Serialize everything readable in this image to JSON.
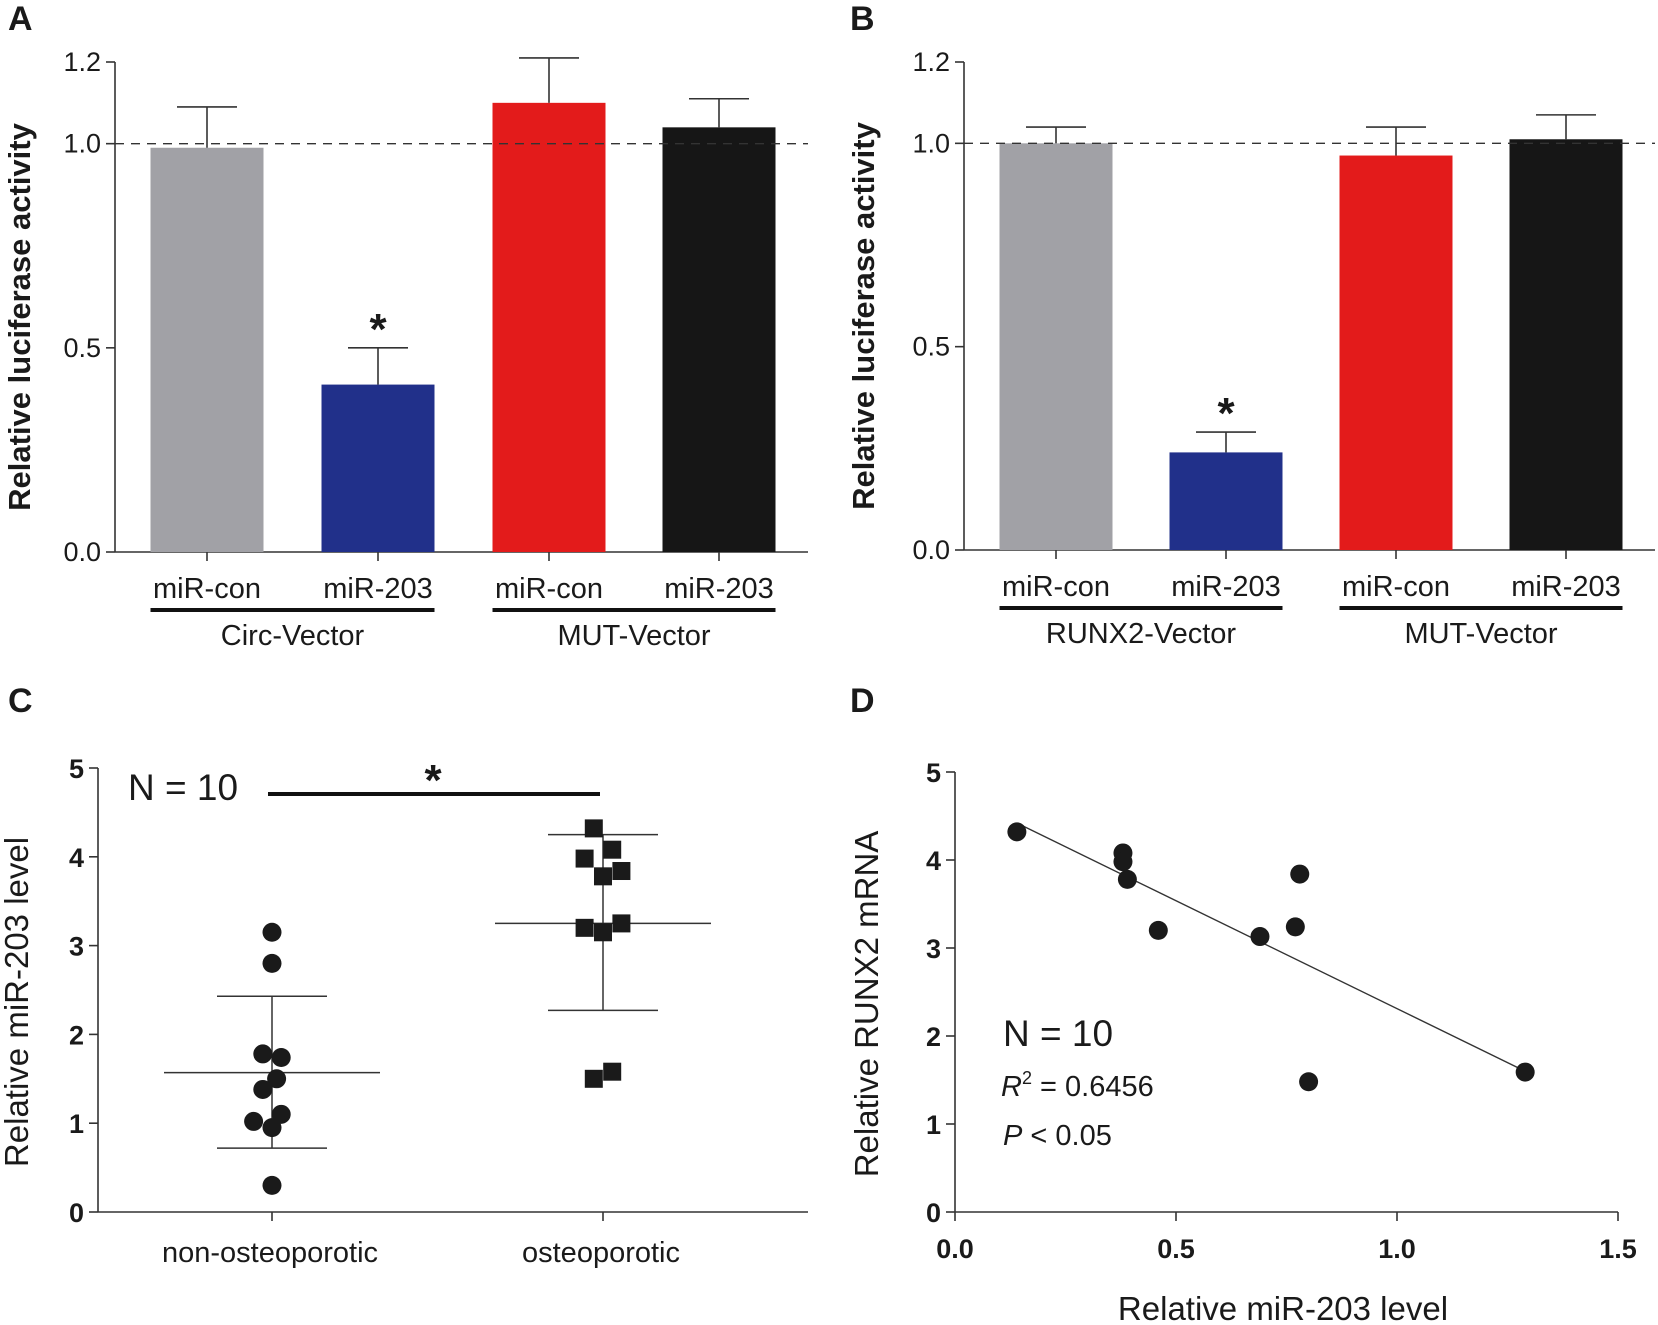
{
  "chart_data": [
    {
      "panel": "A",
      "type": "bar",
      "ylabel": "Relative luciferase activity",
      "ylim": [
        0,
        1.2
      ],
      "yticks": [
        "0.0",
        "0.5",
        "1.0",
        "1.2"
      ],
      "ytick_values": [
        0,
        0.5,
        1.0,
        1.2
      ],
      "reference_line": 1.0,
      "categories": [
        "miR-con",
        "miR-203",
        "miR-con",
        "miR-203"
      ],
      "groups": [
        {
          "label": "Circ-Vector",
          "members": [
            0,
            1
          ]
        },
        {
          "label": "MUT-Vector",
          "members": [
            2,
            3
          ]
        }
      ],
      "values": [
        0.99,
        0.41,
        1.1,
        1.04
      ],
      "errors": [
        0.1,
        0.09,
        0.11,
        0.07
      ],
      "colors": [
        "#a1a1a6",
        "#21308a",
        "#e31b1b",
        "#161616"
      ],
      "significance": [
        "",
        "*",
        "",
        ""
      ]
    },
    {
      "panel": "B",
      "type": "bar",
      "ylabel": "Relative luciferase activity",
      "ylim": [
        0,
        1.2
      ],
      "yticks": [
        "0.0",
        "0.5",
        "1.0",
        "1.2"
      ],
      "ytick_values": [
        0,
        0.5,
        1.0,
        1.2
      ],
      "reference_line": 1.0,
      "categories": [
        "miR-con",
        "miR-203",
        "miR-con",
        "miR-203"
      ],
      "groups": [
        {
          "label": "RUNX2-Vector",
          "members": [
            0,
            1
          ]
        },
        {
          "label": "MUT-Vector",
          "members": [
            2,
            3
          ]
        }
      ],
      "values": [
        1.0,
        0.24,
        0.97,
        1.01
      ],
      "errors": [
        0.04,
        0.05,
        0.07,
        0.06
      ],
      "colors": [
        "#a1a1a6",
        "#21308a",
        "#e31b1b",
        "#161616"
      ],
      "significance": [
        "",
        "*",
        "",
        ""
      ]
    },
    {
      "panel": "C",
      "type": "scatter",
      "ylabel": "Relative miR-203 level",
      "ylim": [
        0,
        5
      ],
      "yticks": [
        "0",
        "1",
        "2",
        "3",
        "4",
        "5"
      ],
      "ytick_values": [
        0,
        1,
        2,
        3,
        4,
        5
      ],
      "categories": [
        "non-osteoporotic",
        "osteoporotic"
      ],
      "annotation": "N = 10",
      "significance": "*",
      "series": [
        {
          "category": "non-osteoporotic",
          "marker": "circle",
          "points": [
            [
              0,
              3.15
            ],
            [
              0,
              2.8
            ],
            [
              -0.04,
              1.78
            ],
            [
              0.04,
              1.74
            ],
            [
              0.02,
              1.5
            ],
            [
              -0.04,
              1.38
            ],
            [
              0.04,
              1.1
            ],
            [
              -0.08,
              1.02
            ],
            [
              0,
              0.95
            ],
            [
              0,
              0.3
            ]
          ],
          "mean": 1.57,
          "sd_low": 0.72,
          "sd_high": 2.43
        },
        {
          "category": "osteoporotic",
          "marker": "square",
          "points": [
            [
              -0.04,
              4.32
            ],
            [
              0.04,
              4.08
            ],
            [
              -0.08,
              3.98
            ],
            [
              0,
              3.78
            ],
            [
              0.08,
              3.84
            ],
            [
              -0.08,
              3.2
            ],
            [
              0,
              3.15
            ],
            [
              0.08,
              3.25
            ],
            [
              -0.04,
              1.5
            ],
            [
              0.04,
              1.58
            ]
          ],
          "mean": 3.25,
          "sd_low": 2.27,
          "sd_high": 4.25
        }
      ]
    },
    {
      "panel": "D",
      "type": "scatter",
      "xlabel": "Relative miR-203 level",
      "ylabel": "Relative RUNX2 mRNA",
      "xlim": [
        0,
        1.5
      ],
      "ylim": [
        0,
        5
      ],
      "xticks": [
        "0.0",
        "0.5",
        "1.0",
        "1.5"
      ],
      "xtick_values": [
        0,
        0.5,
        1.0,
        1.5
      ],
      "yticks": [
        "0",
        "1",
        "2",
        "3",
        "4",
        "5"
      ],
      "ytick_values": [
        0,
        1,
        2,
        3,
        4,
        5
      ],
      "points": [
        [
          0.14,
          4.32
        ],
        [
          0.38,
          4.08
        ],
        [
          0.38,
          3.98
        ],
        [
          0.39,
          3.78
        ],
        [
          0.46,
          3.2
        ],
        [
          0.69,
          3.13
        ],
        [
          0.77,
          3.24
        ],
        [
          0.78,
          3.84
        ],
        [
          0.8,
          1.48
        ],
        [
          1.29,
          1.59
        ]
      ],
      "fit_line": {
        "x": [
          0.14,
          1.29
        ],
        "y": [
          4.42,
          1.6
        ]
      },
      "annotation": "N = 10",
      "r2_symbol": "R",
      "r2_exp": "2",
      "r2_value": " = 0.6456",
      "p_symbol": "P",
      "p_value": " < 0.05"
    }
  ],
  "panels": [
    "A",
    "B",
    "C",
    "D"
  ]
}
